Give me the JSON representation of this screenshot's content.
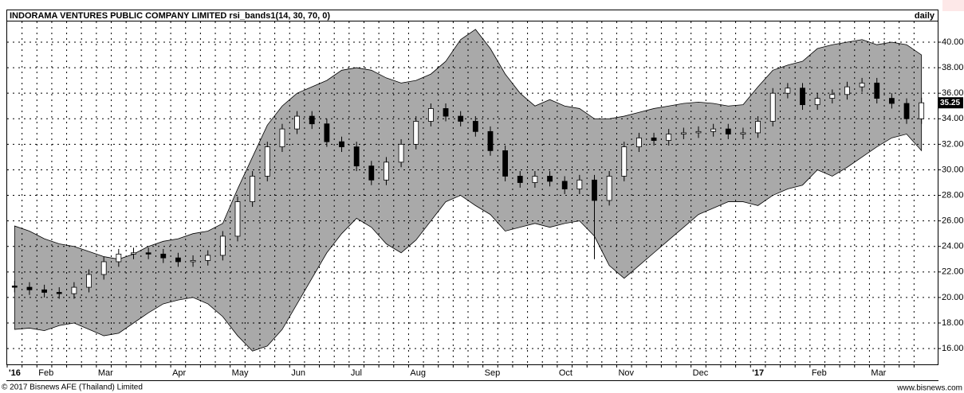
{
  "chart_data": {
    "type": "candlestick",
    "title": "INDORAMA VENTURES PUBLIC COMPANY LIMITED rsi_bands1(14, 30, 70, 0)",
    "period": "daily",
    "footer_left": "© 2017 Bisnews AFE (Thailand) Limited",
    "footer_right": "www.bisnews.com",
    "categories": [
      "'16",
      null,
      "Feb",
      null,
      null,
      null,
      "Mar",
      null,
      null,
      null,
      null,
      "Apr",
      null,
      null,
      null,
      "May",
      null,
      null,
      null,
      "Jun",
      null,
      null,
      null,
      "Jul",
      null,
      null,
      null,
      "Aug",
      null,
      null,
      null,
      null,
      "Sep",
      null,
      null,
      null,
      null,
      "Oct",
      null,
      null,
      null,
      "Nov",
      null,
      null,
      null,
      null,
      "Dec",
      null,
      null,
      null,
      "'17",
      null,
      null,
      null,
      "Feb",
      null,
      null,
      null,
      "Mar",
      null,
      null,
      null
    ],
    "open": [
      20.9,
      20.8,
      20.6,
      20.4,
      20.3,
      20.8,
      21.8,
      22.8,
      23.4,
      23.5,
      23.4,
      23.1,
      22.8,
      22.9,
      23.3,
      24.8,
      27.5,
      29.5,
      31.8,
      33.2,
      34.2,
      33.6,
      32.2,
      31.8,
      30.3,
      29.2,
      30.6,
      32.0,
      33.8,
      34.8,
      34.2,
      33.8,
      33.0,
      31.5,
      29.5,
      29.0,
      29.5,
      29.1,
      28.5,
      29.2,
      27.6,
      29.5,
      31.8,
      32.5,
      32.3,
      32.8,
      32.9,
      33.0,
      33.2,
      32.8,
      32.9,
      33.8,
      36.0,
      36.4,
      35.1,
      35.6,
      35.9,
      36.5,
      36.8,
      35.6,
      35.2,
      34.0
    ],
    "high": [
      21.3,
      21.2,
      21.0,
      20.8,
      21.2,
      22.2,
      23.2,
      23.8,
      23.9,
      23.9,
      23.8,
      23.5,
      23.3,
      23.7,
      25.2,
      27.9,
      29.9,
      32.2,
      33.6,
      34.6,
      34.6,
      34.0,
      32.6,
      32.2,
      30.7,
      31.0,
      32.4,
      34.2,
      35.2,
      35.2,
      34.6,
      34.2,
      33.4,
      31.9,
      29.9,
      29.9,
      29.9,
      29.5,
      29.6,
      29.6,
      29.9,
      32.2,
      32.9,
      32.9,
      33.2,
      33.3,
      33.4,
      33.6,
      33.6,
      33.3,
      34.2,
      36.4,
      36.8,
      36.8,
      36.0,
      36.3,
      36.9,
      37.2,
      37.2,
      36.0,
      35.6,
      35.65
    ],
    "low": [
      20.4,
      20.2,
      20.0,
      19.9,
      19.9,
      20.4,
      21.4,
      22.4,
      23.0,
      23.0,
      22.7,
      22.4,
      22.4,
      22.5,
      22.9,
      24.4,
      27.1,
      29.1,
      31.4,
      32.8,
      33.2,
      31.8,
      31.4,
      29.9,
      28.8,
      28.8,
      30.2,
      31.6,
      33.4,
      33.8,
      33.4,
      32.6,
      31.1,
      29.1,
      28.6,
      28.6,
      28.7,
      28.1,
      28.1,
      23.0,
      27.2,
      29.1,
      31.4,
      31.9,
      31.9,
      32.4,
      32.5,
      32.6,
      32.4,
      32.4,
      32.5,
      33.4,
      35.6,
      34.7,
      34.7,
      35.2,
      35.5,
      36.1,
      35.2,
      34.8,
      33.6,
      33.6
    ],
    "close": [
      20.8,
      20.6,
      20.4,
      20.3,
      20.8,
      21.8,
      22.8,
      23.4,
      23.5,
      23.4,
      23.1,
      22.8,
      22.9,
      23.3,
      24.8,
      27.5,
      29.5,
      31.8,
      33.2,
      34.2,
      33.6,
      32.2,
      31.8,
      30.3,
      29.2,
      30.6,
      32.0,
      33.8,
      34.8,
      34.2,
      33.8,
      33.0,
      31.5,
      29.5,
      29.0,
      29.5,
      29.1,
      28.5,
      29.2,
      27.6,
      29.5,
      31.8,
      32.5,
      32.3,
      32.8,
      32.9,
      33.0,
      33.2,
      32.8,
      32.9,
      33.8,
      36.0,
      36.4,
      35.1,
      35.6,
      35.9,
      36.5,
      36.8,
      35.6,
      35.2,
      34.0,
      35.25
    ],
    "band_upper": [
      25.6,
      25.2,
      24.6,
      24.2,
      24.0,
      23.6,
      23.2,
      23.0,
      23.4,
      24.0,
      24.4,
      24.6,
      25.0,
      25.2,
      25.8,
      28.5,
      31.0,
      33.5,
      35.0,
      36.0,
      36.5,
      37.0,
      37.8,
      38.0,
      37.8,
      37.2,
      36.8,
      37.0,
      37.5,
      38.5,
      40.2,
      41.0,
      39.5,
      37.5,
      36.0,
      35.0,
      35.5,
      35.0,
      34.8,
      34.0,
      34.0,
      34.2,
      34.5,
      34.8,
      35.0,
      35.2,
      35.3,
      35.2,
      35.0,
      35.1,
      36.5,
      37.8,
      38.2,
      38.5,
      39.5,
      39.8,
      40.0,
      40.2,
      39.8,
      40.0,
      39.8,
      39.0
    ],
    "band_lower": [
      17.5,
      17.6,
      17.4,
      17.8,
      18.0,
      17.5,
      17.0,
      17.2,
      18.0,
      18.8,
      19.5,
      19.8,
      20.0,
      19.5,
      18.5,
      17.0,
      15.8,
      16.2,
      17.5,
      19.5,
      21.5,
      23.5,
      25.0,
      26.2,
      25.5,
      24.2,
      23.5,
      24.5,
      26.0,
      27.5,
      28.0,
      27.2,
      26.5,
      25.2,
      25.5,
      25.8,
      25.5,
      25.8,
      26.0,
      24.8,
      22.5,
      21.5,
      22.5,
      23.5,
      24.5,
      25.5,
      26.5,
      27.0,
      27.5,
      27.5,
      27.2,
      28.0,
      28.5,
      28.8,
      30.0,
      29.5,
      30.2,
      31.0,
      31.8,
      32.5,
      32.8,
      31.5
    ],
    "band_color": "#a9a9a9",
    "up_color": "#ffffff",
    "down_color": "#000000",
    "ylim": [
      14.76,
      41.62
    ],
    "yticks": [
      {
        "value": 16,
        "label": "16.00"
      },
      {
        "value": 18,
        "label": "18.00"
      },
      {
        "value": 20,
        "label": "20.00"
      },
      {
        "value": 22,
        "label": "22.00"
      },
      {
        "value": 24,
        "label": "24.00"
      },
      {
        "value": 26,
        "label": "26.00"
      },
      {
        "value": 28,
        "label": "28.00"
      },
      {
        "value": 30,
        "label": "30.00"
      },
      {
        "value": 32,
        "label": "32.00"
      },
      {
        "value": 34,
        "label": "34.00"
      },
      {
        "value": 36,
        "label": "36.00"
      },
      {
        "value": 38,
        "label": "38.00"
      },
      {
        "value": 40,
        "label": "40.00"
      }
    ],
    "grid": true
  }
}
